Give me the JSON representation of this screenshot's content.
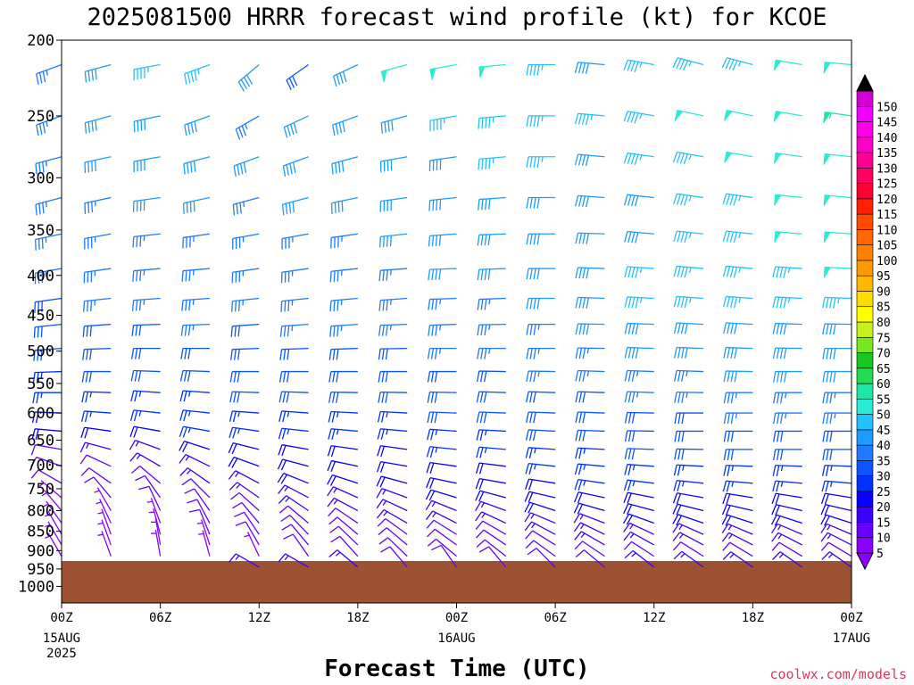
{
  "chart_data": {
    "type": "wind-barb time-height",
    "title": "2025081500 HRRR forecast wind profile (kt) for KCOE",
    "xlabel": "Forecast Time (UTC)",
    "credit": "coolwx.com/models",
    "ylim": [
      200,
      1050
    ],
    "xlim_hours": [
      0,
      48
    ],
    "y_ticks": [
      "200",
      "250",
      "300",
      "350",
      "400",
      "450",
      "500",
      "550",
      "600",
      "650",
      "700",
      "750",
      "800",
      "850",
      "900",
      "950",
      "1000"
    ],
    "x_ticks": [
      {
        "hour": 0,
        "label": "00Z",
        "sub1": "15AUG",
        "sub2": "2025"
      },
      {
        "hour": 6,
        "label": "06Z",
        "sub1": "",
        "sub2": ""
      },
      {
        "hour": 12,
        "label": "12Z",
        "sub1": "",
        "sub2": ""
      },
      {
        "hour": 18,
        "label": "18Z",
        "sub1": "",
        "sub2": ""
      },
      {
        "hour": 24,
        "label": "00Z",
        "sub1": "16AUG",
        "sub2": ""
      },
      {
        "hour": 30,
        "label": "06Z",
        "sub1": "",
        "sub2": ""
      },
      {
        "hour": 36,
        "label": "12Z",
        "sub1": "",
        "sub2": ""
      },
      {
        "hour": 42,
        "label": "18Z",
        "sub1": "",
        "sub2": ""
      },
      {
        "hour": 48,
        "label": "00Z",
        "sub1": "17AUG",
        "sub2": ""
      }
    ],
    "terrain": {
      "surface_pressure_hPa": 928,
      "color": "#9c5233"
    },
    "colorbar": {
      "levels": [
        "5",
        "10",
        "15",
        "20",
        "25",
        "30",
        "35",
        "40",
        "45",
        "50",
        "55",
        "60",
        "65",
        "70",
        "75",
        "80",
        "85",
        "90",
        "95",
        "100",
        "105",
        "110",
        "115",
        "120",
        "125",
        "130",
        "135",
        "140",
        "145",
        "150"
      ],
      "colors": [
        "#8c00ff",
        "#6600ff",
        "#3c00ff",
        "#0a00ff",
        "#0032ff",
        "#0a55ff",
        "#1f7aff",
        "#1e9bff",
        "#23c2ff",
        "#2aecd5",
        "#1ee6a5",
        "#23dc50",
        "#18c81e",
        "#7ae61e",
        "#c6f01e",
        "#ffff00",
        "#ffdc00",
        "#ffb900",
        "#ff9900",
        "#ff8000",
        "#ff6a00",
        "#ff4a00",
        "#ff2000",
        "#ff0032",
        "#ff0064",
        "#ff0096",
        "#ff00c8",
        "#ff00e6",
        "#f000ff",
        "#d200d2"
      ],
      "low_triangle": "#8c00ff",
      "high_triangle": "#000000"
    },
    "barb_levels_hPa": [
      215,
      250,
      282,
      318,
      354,
      392,
      428,
      462,
      496,
      531,
      565,
      600,
      633,
      668,
      702,
      738,
      770,
      800,
      830,
      858,
      885,
      915,
      945
    ],
    "wind_speed_kt": [
      [
        35,
        38,
        44,
        46,
        38,
        32,
        40,
        50,
        52,
        48,
        46,
        42,
        44,
        44,
        46,
        50,
        52
      ],
      [
        36,
        38,
        40,
        41,
        36,
        38,
        40,
        42,
        44,
        46,
        45,
        44,
        44,
        48,
        50,
        52,
        54
      ],
      [
        35,
        38,
        40,
        40,
        38,
        38,
        40,
        40,
        42,
        44,
        44,
        42,
        44,
        46,
        48,
        50,
        52
      ],
      [
        35,
        36,
        38,
        38,
        36,
        38,
        38,
        40,
        40,
        42,
        40,
        40,
        42,
        44,
        46,
        50,
        52
      ],
      [
        34,
        35,
        36,
        37,
        36,
        36,
        36,
        38,
        38,
        40,
        38,
        40,
        42,
        46,
        47,
        48,
        50
      ],
      [
        33,
        34,
        35,
        35,
        34,
        34,
        36,
        36,
        38,
        38,
        38,
        40,
        44,
        45,
        46,
        46,
        48
      ],
      [
        32,
        33,
        34,
        34,
        33,
        34,
        35,
        35,
        36,
        36,
        38,
        40,
        44,
        44,
        44,
        44,
        46
      ],
      [
        30,
        32,
        32,
        33,
        32,
        33,
        34,
        34,
        35,
        36,
        36,
        38,
        42,
        42,
        42,
        42,
        42
      ],
      [
        28,
        30,
        30,
        31,
        30,
        32,
        32,
        32,
        34,
        34,
        34,
        36,
        38,
        40,
        40,
        40,
        40
      ],
      [
        26,
        28,
        28,
        29,
        29,
        30,
        30,
        30,
        32,
        32,
        34,
        34,
        36,
        37,
        38,
        38,
        38
      ],
      [
        24,
        26,
        26,
        27,
        28,
        28,
        28,
        29,
        30,
        30,
        32,
        32,
        34,
        35,
        36,
        36,
        36
      ],
      [
        22,
        24,
        24,
        25,
        26,
        26,
        26,
        27,
        28,
        28,
        30,
        31,
        32,
        32,
        34,
        34,
        34
      ],
      [
        18,
        22,
        22,
        24,
        24,
        24,
        24,
        25,
        26,
        26,
        28,
        29,
        30,
        30,
        32,
        32,
        32
      ],
      [
        12,
        15,
        16,
        18,
        20,
        20,
        22,
        22,
        23,
        24,
        26,
        27,
        28,
        28,
        28,
        28,
        28
      ],
      [
        10,
        12,
        14,
        16,
        18,
        19,
        20,
        20,
        22,
        22,
        24,
        25,
        26,
        26,
        26,
        26,
        26
      ],
      [
        8,
        10,
        12,
        14,
        16,
        18,
        18,
        18,
        20,
        20,
        22,
        23,
        24,
        24,
        24,
        24,
        24
      ],
      [
        6,
        8,
        10,
        12,
        14,
        16,
        16,
        17,
        18,
        18,
        20,
        21,
        22,
        22,
        22,
        22,
        22
      ],
      [
        6,
        7,
        8,
        10,
        12,
        14,
        14,
        15,
        16,
        16,
        18,
        19,
        20,
        20,
        20,
        20,
        20
      ],
      [
        5,
        6,
        7,
        9,
        10,
        12,
        12,
        13,
        14,
        14,
        16,
        17,
        18,
        18,
        18,
        18,
        18
      ],
      [
        5,
        5,
        6,
        8,
        9,
        10,
        10,
        11,
        12,
        12,
        14,
        15,
        16,
        16,
        16,
        16,
        16
      ],
      [
        5,
        5,
        6,
        7,
        8,
        9,
        9,
        10,
        10,
        11,
        12,
        13,
        14,
        14,
        14,
        14,
        14
      ],
      [
        5,
        5,
        5,
        6,
        7,
        8,
        8,
        9,
        9,
        10,
        10,
        11,
        12,
        12,
        12,
        12,
        12
      ],
      [
        0,
        0,
        0,
        0,
        14,
        16,
        16,
        12,
        10,
        10,
        10,
        12,
        14,
        16,
        16,
        16,
        14
      ]
    ],
    "wind_dir_deg": [
      [
        250,
        255,
        260,
        250,
        230,
        235,
        245,
        255,
        260,
        265,
        270,
        275,
        280,
        285,
        285,
        280,
        275
      ],
      [
        250,
        255,
        258,
        250,
        240,
        245,
        250,
        255,
        260,
        265,
        270,
        275,
        280,
        282,
        282,
        280,
        278
      ],
      [
        255,
        258,
        260,
        255,
        250,
        250,
        255,
        260,
        262,
        265,
        270,
        275,
        278,
        280,
        280,
        278,
        276
      ],
      [
        255,
        258,
        262,
        258,
        255,
        255,
        258,
        262,
        264,
        266,
        270,
        274,
        276,
        278,
        278,
        276,
        275
      ],
      [
        258,
        260,
        264,
        262,
        260,
        260,
        262,
        264,
        266,
        268,
        270,
        272,
        275,
        276,
        276,
        275,
        274
      ],
      [
        260,
        262,
        265,
        265,
        262,
        262,
        264,
        266,
        268,
        268,
        270,
        272,
        274,
        275,
        275,
        274,
        273
      ],
      [
        262,
        264,
        266,
        266,
        264,
        264,
        265,
        266,
        268,
        268,
        270,
        272,
        273,
        274,
        274,
        273,
        272
      ],
      [
        264,
        266,
        268,
        268,
        266,
        266,
        266,
        268,
        268,
        269,
        270,
        271,
        272,
        273,
        273,
        272,
        271
      ],
      [
        266,
        268,
        270,
        270,
        268,
        268,
        268,
        269,
        270,
        270,
        270,
        271,
        272,
        272,
        272,
        271,
        270
      ],
      [
        268,
        270,
        272,
        272,
        270,
        270,
        270,
        270,
        270,
        271,
        271,
        272,
        272,
        272,
        271,
        270,
        270
      ],
      [
        270,
        272,
        274,
        274,
        272,
        272,
        271,
        271,
        271,
        272,
        272,
        272,
        272,
        271,
        270,
        270,
        270
      ],
      [
        272,
        274,
        276,
        276,
        274,
        274,
        273,
        273,
        272,
        272,
        272,
        272,
        271,
        270,
        270,
        270,
        270
      ],
      [
        275,
        278,
        280,
        280,
        278,
        276,
        275,
        275,
        274,
        273,
        273,
        272,
        271,
        270,
        270,
        270,
        270
      ],
      [
        280,
        285,
        290,
        288,
        284,
        280,
        278,
        278,
        276,
        275,
        274,
        273,
        272,
        271,
        270,
        270,
        270
      ],
      [
        290,
        295,
        300,
        296,
        290,
        285,
        282,
        280,
        278,
        277,
        276,
        275,
        274,
        273,
        272,
        272,
        272
      ],
      [
        300,
        305,
        310,
        305,
        298,
        292,
        288,
        285,
        282,
        280,
        279,
        278,
        277,
        276,
        275,
        275,
        275
      ],
      [
        310,
        320,
        325,
        315,
        305,
        298,
        294,
        290,
        287,
        285,
        283,
        282,
        281,
        280,
        279,
        279,
        279
      ],
      [
        320,
        330,
        335,
        325,
        312,
        304,
        298,
        295,
        292,
        290,
        288,
        286,
        285,
        284,
        283,
        283,
        283
      ],
      [
        325,
        335,
        340,
        332,
        320,
        310,
        304,
        300,
        297,
        295,
        293,
        291,
        290,
        289,
        288,
        288,
        288
      ],
      [
        330,
        340,
        345,
        338,
        326,
        316,
        310,
        306,
        302,
        300,
        298,
        296,
        295,
        294,
        293,
        293,
        293
      ],
      [
        330,
        340,
        350,
        342,
        330,
        320,
        314,
        310,
        306,
        304,
        302,
        300,
        299,
        298,
        297,
        297,
        297
      ],
      [
        330,
        340,
        350,
        345,
        335,
        325,
        318,
        314,
        310,
        308,
        306,
        304,
        303,
        302,
        301,
        301,
        301
      ],
      [
        0,
        0,
        0,
        0,
        300,
        300,
        310,
        320,
        325,
        320,
        315,
        310,
        308,
        306,
        305,
        305,
        305
      ]
    ]
  }
}
